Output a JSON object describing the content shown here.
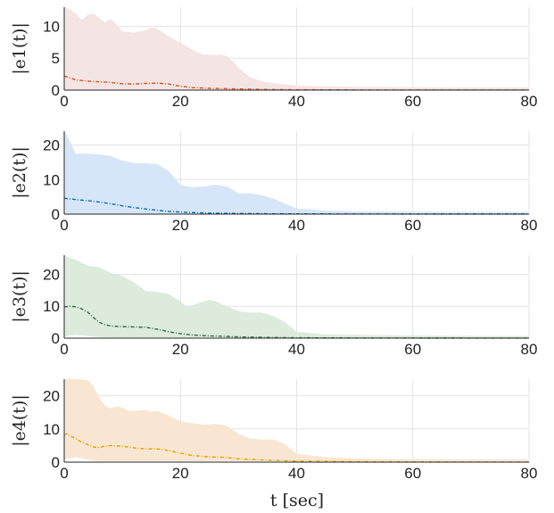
{
  "figure": {
    "xlabel": "t [sec]"
  },
  "chart_data": [
    {
      "type": "area",
      "ylabel": "|e1(t)|",
      "xlim": [
        0,
        80
      ],
      "ylim": [
        0,
        13
      ],
      "xticks": [
        0,
        20,
        40,
        60,
        80
      ],
      "yticks": [
        0,
        5,
        10
      ],
      "grid": true,
      "band_color": "#f4e4e4",
      "line_color": "#d95319",
      "band": {
        "x": [
          0,
          1,
          2,
          3,
          4,
          5,
          6,
          7,
          8,
          9,
          10,
          12,
          14,
          15,
          16,
          17,
          18,
          20,
          22,
          23,
          24,
          26,
          27,
          28,
          29,
          30,
          32,
          34,
          36,
          38,
          40,
          45,
          50,
          60,
          70,
          80
        ],
        "upper": [
          13.0,
          12.7,
          12.0,
          11.0,
          11.8,
          12.0,
          11.3,
          10.6,
          11.2,
          10.3,
          9.2,
          9.0,
          9.4,
          9.8,
          9.6,
          9.0,
          8.4,
          7.4,
          6.4,
          5.9,
          5.6,
          5.5,
          5.6,
          5.3,
          4.5,
          3.5,
          2.0,
          1.4,
          1.1,
          0.9,
          0.7,
          0.6,
          0.5,
          0.45,
          0.4,
          0.4
        ],
        "lower": [
          0.05,
          0.05,
          0.05,
          0.05,
          0.05,
          0.05,
          0.05,
          0.05,
          0.05,
          0.05,
          0.05,
          0.05,
          0.05,
          0.05,
          0.05,
          0.05,
          0.05,
          0.05,
          0.05,
          0.05,
          0.05,
          0.05,
          0.05,
          0.05,
          0.05,
          0.05,
          0.05,
          0.05,
          0.05,
          0.05,
          0.05,
          0.05,
          0.05,
          0.05,
          0.05,
          0.05
        ]
      },
      "mean": {
        "x": [
          0,
          1,
          2,
          4,
          6,
          8,
          10,
          12,
          14,
          16,
          18,
          20,
          22,
          25,
          30,
          35,
          40,
          50,
          60,
          70,
          80
        ],
        "y": [
          2.2,
          1.9,
          1.6,
          1.4,
          1.3,
          1.2,
          1.0,
          0.95,
          1.05,
          1.1,
          0.95,
          0.6,
          0.4,
          0.28,
          0.18,
          0.1,
          0.06,
          0.03,
          0.02,
          0.02,
          0.02
        ]
      }
    },
    {
      "type": "area",
      "ylabel": "|e2(t)|",
      "xlim": [
        0,
        80
      ],
      "ylim": [
        0,
        24
      ],
      "xticks": [
        0,
        20,
        40,
        60,
        80
      ],
      "yticks": [
        0,
        10,
        20
      ],
      "grid": true,
      "band_color": "#d6e6f8",
      "line_color": "#0072bd",
      "band": {
        "x": [
          0,
          1,
          2,
          4,
          6,
          8,
          10,
          12,
          14,
          16,
          18,
          19,
          20,
          22,
          24,
          26,
          28,
          30,
          32,
          34,
          36,
          38,
          40,
          45,
          50,
          60,
          70,
          80
        ],
        "upper": [
          24.0,
          21.0,
          17.5,
          17.5,
          17.3,
          16.8,
          15.5,
          14.8,
          14.7,
          14.5,
          12.5,
          10.5,
          8.5,
          7.8,
          8.0,
          8.5,
          8.0,
          6.0,
          6.0,
          5.5,
          4.5,
          3.0,
          1.6,
          1.0,
          0.8,
          0.7,
          0.6,
          0.6
        ],
        "lower": [
          0.1,
          0.1,
          0.1,
          0.1,
          0.1,
          0.1,
          0.1,
          0.1,
          0.1,
          0.1,
          0.1,
          0.1,
          0.1,
          0.1,
          0.1,
          0.1,
          0.1,
          0.1,
          0.1,
          0.1,
          0.1,
          0.1,
          0.1,
          0.1,
          0.1,
          0.1,
          0.1,
          0.1
        ]
      },
      "mean": {
        "x": [
          0,
          1,
          2,
          4,
          6,
          8,
          10,
          12,
          14,
          16,
          18,
          20,
          22,
          25,
          30,
          35,
          40,
          50,
          60,
          70,
          80
        ],
        "y": [
          4.6,
          4.4,
          4.2,
          3.9,
          3.5,
          3.0,
          2.4,
          1.9,
          1.5,
          1.1,
          0.8,
          0.6,
          0.45,
          0.3,
          0.2,
          0.12,
          0.08,
          0.05,
          0.03,
          0.03,
          0.03
        ]
      }
    },
    {
      "type": "area",
      "ylabel": "|e3(t)|",
      "xlim": [
        0,
        80
      ],
      "ylim": [
        0,
        26
      ],
      "xticks": [
        0,
        20,
        40,
        60,
        80
      ],
      "yticks": [
        0,
        10,
        20
      ],
      "grid": true,
      "band_color": "#dcebdc",
      "line_color": "#2d6a45",
      "band": {
        "x": [
          0,
          1,
          2,
          4,
          6,
          8,
          10,
          12,
          14,
          16,
          18,
          20,
          21,
          22,
          24,
          25,
          26,
          28,
          30,
          32,
          34,
          36,
          38,
          40,
          45,
          50,
          60,
          70,
          80
        ],
        "upper": [
          26.0,
          25.2,
          24.5,
          22.8,
          22.2,
          20.5,
          19.5,
          17.5,
          14.8,
          14.5,
          13.8,
          11.5,
          10.0,
          10.3,
          11.5,
          12.0,
          11.6,
          10.0,
          8.5,
          8.0,
          8.0,
          7.0,
          5.0,
          2.0,
          1.2,
          1.0,
          0.8,
          0.7,
          0.7
        ],
        "lower": [
          0.5,
          0.8,
          1.0,
          0.7,
          0.3,
          0.2,
          0.2,
          0.2,
          0.2,
          0.2,
          0.2,
          0.2,
          0.2,
          0.2,
          0.2,
          0.2,
          0.2,
          0.2,
          0.2,
          0.2,
          0.2,
          0.2,
          0.2,
          0.2,
          0.2,
          0.2,
          0.2,
          0.2,
          0.2
        ]
      },
      "mean": {
        "x": [
          0,
          1,
          2,
          3,
          4,
          5,
          6,
          7,
          8,
          10,
          12,
          14,
          16,
          18,
          20,
          22,
          25,
          30,
          35,
          40,
          50,
          60,
          70,
          80
        ],
        "y": [
          9.8,
          10.0,
          9.8,
          9.2,
          8.2,
          6.5,
          5.0,
          4.2,
          3.8,
          3.6,
          3.5,
          3.4,
          2.8,
          2.0,
          1.4,
          1.0,
          0.7,
          0.4,
          0.22,
          0.12,
          0.06,
          0.04,
          0.03,
          0.03
        ]
      }
    },
    {
      "type": "area",
      "ylabel": "|e4(t)|",
      "xlim": [
        0,
        80
      ],
      "ylim": [
        0,
        25
      ],
      "xticks": [
        0,
        20,
        40,
        60,
        80
      ],
      "yticks": [
        0,
        10,
        20
      ],
      "grid": true,
      "band_color": "#f8e6d3",
      "line_color": "#e69f00",
      "band": {
        "x": [
          0,
          1,
          2,
          4,
          5,
          6,
          7,
          8,
          9,
          10,
          11,
          12,
          14,
          15,
          16,
          18,
          20,
          22,
          24,
          26,
          28,
          30,
          32,
          34,
          36,
          38,
          40,
          45,
          50,
          60,
          70,
          80
        ],
        "upper": [
          25.0,
          25.0,
          25.0,
          24.8,
          23.0,
          19.5,
          17.0,
          16.2,
          16.8,
          16.5,
          15.5,
          15.5,
          15.8,
          15.2,
          15.5,
          14.0,
          12.3,
          11.8,
          11.3,
          11.6,
          11.0,
          8.5,
          7.2,
          6.8,
          6.8,
          5.5,
          2.5,
          1.5,
          1.1,
          0.9,
          0.8,
          0.8
        ],
        "lower": [
          0.8,
          1.2,
          1.5,
          0.8,
          0.5,
          0.3,
          0.3,
          0.3,
          0.3,
          0.3,
          0.3,
          0.3,
          0.3,
          0.3,
          0.3,
          0.3,
          0.3,
          0.3,
          0.3,
          0.3,
          0.3,
          0.3,
          0.3,
          0.3,
          0.3,
          0.3,
          0.3,
          0.3,
          0.3,
          0.3,
          0.3,
          0.3
        ]
      },
      "mean": {
        "x": [
          0,
          0.5,
          1,
          2,
          3,
          4,
          5,
          6,
          7,
          8,
          10,
          12,
          14,
          16,
          18,
          20,
          22,
          25,
          28,
          30,
          35,
          40,
          50,
          60,
          70,
          80
        ],
        "y": [
          8.2,
          8.6,
          8.0,
          7.0,
          6.0,
          5.3,
          4.6,
          4.4,
          4.8,
          5.0,
          4.8,
          4.3,
          4.0,
          4.0,
          3.5,
          2.7,
          2.0,
          1.6,
          1.4,
          1.0,
          0.6,
          0.3,
          0.15,
          0.08,
          0.05,
          0.05
        ]
      }
    }
  ]
}
